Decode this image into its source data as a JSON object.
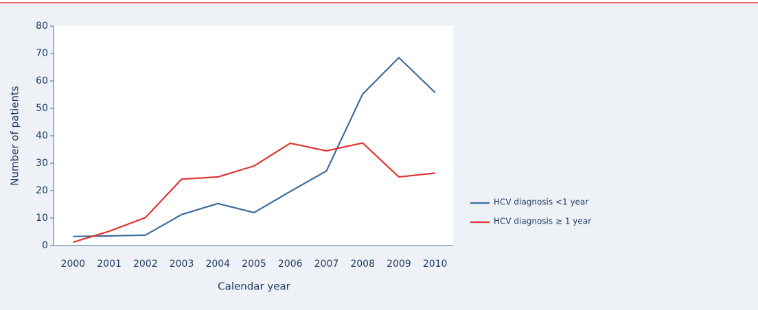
{
  "chart_data": {
    "type": "line",
    "x_label": "Calendar year",
    "y_label": "Number of patients",
    "categories": [
      "2000",
      "2001",
      "2002",
      "2003",
      "2004",
      "2005",
      "2006",
      "2007",
      "2008",
      "2009",
      "2010"
    ],
    "series": [
      {
        "name": "HCV diagnosis <1 year",
        "color": "#3d6b9e",
        "values": [
          3.3,
          3.5,
          3.8,
          11.3,
          15.3,
          12,
          19.7,
          27.2,
          55.2,
          68.5,
          55.8
        ]
      },
      {
        "name": "HCV diagnosis ≥ 1 year",
        "color": "#e03530",
        "values": [
          1.2,
          5.2,
          10.2,
          24.2,
          25,
          29,
          37.3,
          34.5,
          37.4,
          25,
          26.4
        ]
      }
    ],
    "ylim": [
      0,
      80
    ],
    "yticks": [
      0,
      10,
      20,
      30,
      40,
      50,
      60,
      70,
      80
    ],
    "legend": "right"
  }
}
